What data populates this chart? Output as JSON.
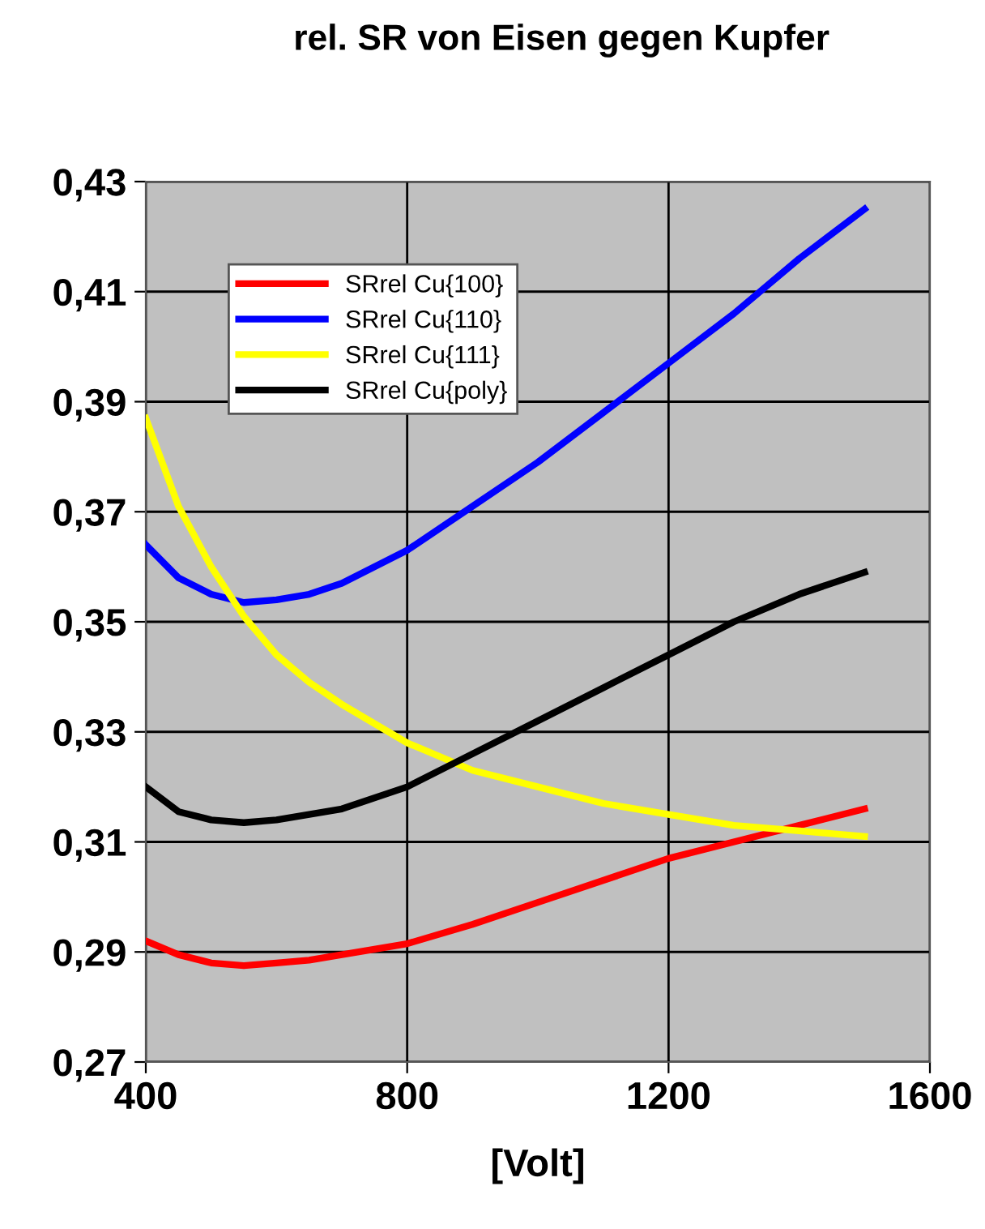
{
  "chart_data": {
    "type": "line",
    "title": "rel. SR von Eisen gegen Kupfer",
    "xlabel": "[Volt]",
    "x": [
      400,
      450,
      500,
      550,
      600,
      650,
      700,
      800,
      900,
      1000,
      1100,
      1200,
      1300,
      1400,
      1500
    ],
    "series": [
      {
        "name": "SRrel Cu{100}",
        "color": "#ff0000",
        "values": [
          0.292,
          0.2895,
          0.288,
          0.2875,
          0.288,
          0.2885,
          0.2895,
          0.2915,
          0.295,
          0.299,
          0.303,
          0.307,
          0.31,
          0.313,
          0.316
        ]
      },
      {
        "name": "SRrel Cu{110}",
        "color": "#0000ff",
        "values": [
          0.364,
          0.358,
          0.355,
          0.3535,
          0.354,
          0.355,
          0.357,
          0.363,
          0.371,
          0.379,
          0.388,
          0.397,
          0.406,
          0.416,
          0.425
        ]
      },
      {
        "name": "SRrel Cu{111}",
        "color": "#ffff00",
        "values": [
          0.387,
          0.371,
          0.36,
          0.351,
          0.344,
          0.339,
          0.335,
          0.328,
          0.323,
          0.32,
          0.317,
          0.315,
          0.313,
          0.312,
          0.311
        ]
      },
      {
        "name": "SRrel Cu{poly}",
        "color": "#000000",
        "values": [
          0.32,
          0.3155,
          0.314,
          0.3135,
          0.314,
          0.315,
          0.316,
          0.32,
          0.326,
          0.332,
          0.338,
          0.344,
          0.35,
          0.355,
          0.359
        ]
      }
    ],
    "xlim": [
      400,
      1600
    ],
    "xticks": [
      400,
      800,
      1200,
      1600
    ],
    "ylim": [
      0.27,
      0.43
    ],
    "yticks": [
      {
        "value": 0.27,
        "label": "0,27"
      },
      {
        "value": 0.29,
        "label": "0,29"
      },
      {
        "value": 0.31,
        "label": "0,31"
      },
      {
        "value": 0.33,
        "label": "0,33"
      },
      {
        "value": 0.35,
        "label": "0,35"
      },
      {
        "value": 0.37,
        "label": "0,37"
      },
      {
        "value": 0.39,
        "label": "0,39"
      },
      {
        "value": 0.41,
        "label": "0,41"
      },
      {
        "value": 0.43,
        "label": "0,43"
      }
    ],
    "grid": true,
    "legend": "top left",
    "marker": "none",
    "line_style": "solid"
  }
}
